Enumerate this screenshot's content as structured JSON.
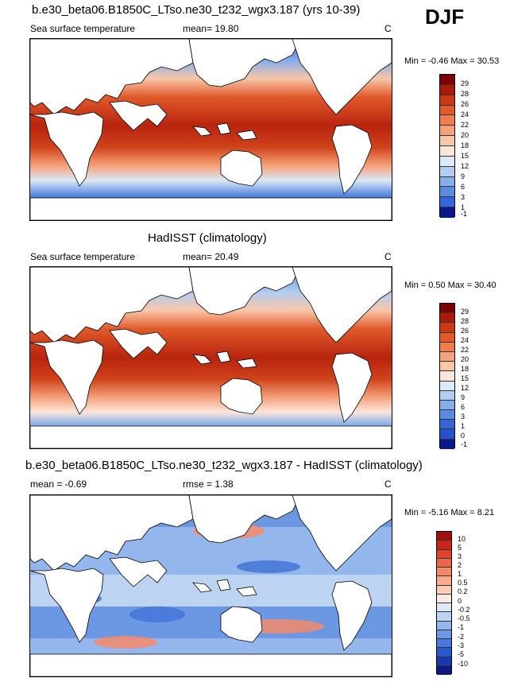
{
  "season": "DJF",
  "panels": [
    {
      "title": "b.e30_beta06.B1850C_LTso.ne30_t232_wgx3.187 (yrs 10-39)",
      "variable": "Sea surface temperature",
      "mean_label": "mean=  19.80",
      "rmse_label": "",
      "units": "C",
      "minmax": "Min = -0.46 Max =  30.53",
      "kind": "abs",
      "colorbar": {
        "levels": [
          "29",
          "28",
          "26",
          "24",
          "22",
          "20",
          "18",
          "15",
          "12",
          "9",
          "6",
          "3",
          "1",
          "-1"
        ],
        "colors": [
          "#7a0403",
          "#a81a0a",
          "#c93a14",
          "#e05a2a",
          "#ef7d4d",
          "#f5a27a",
          "#f9c6a8",
          "#fbe6da",
          "#dce9f6",
          "#b3cdf0",
          "#86aeea",
          "#5a8be0",
          "#3467d6",
          "#1e3fc4",
          "#0a1a8a"
        ]
      }
    },
    {
      "title": "HadISST (climatology)",
      "variable": "Sea surface temperature",
      "mean_label": "mean=  20.49",
      "rmse_label": "",
      "units": "C",
      "minmax": "Min =  0.50 Max =  30.40",
      "kind": "abs",
      "colorbar": {
        "levels": [
          "29",
          "28",
          "26",
          "24",
          "22",
          "20",
          "18",
          "15",
          "12",
          "9",
          "6",
          "3",
          "1",
          "0",
          "-1"
        ],
        "colors": [
          "#7a0403",
          "#a81a0a",
          "#c93a14",
          "#e05a2a",
          "#ef7d4d",
          "#f5a27a",
          "#f9c6a8",
          "#fbe6da",
          "#dce9f6",
          "#b3cdf0",
          "#86aeea",
          "#5a8be0",
          "#3467d6",
          "#2650cc",
          "#1e3fc4",
          "#0a1a8a"
        ]
      }
    },
    {
      "title": "b.e30_beta06.B1850C_LTso.ne30_t232_wgx3.187 - HadISST (climatology)",
      "variable": "",
      "mean_label": "mean =  -0.69",
      "rmse_label": "rmse =   1.38",
      "units": "C",
      "minmax": "Min = -5.16 Max =  8.21",
      "kind": "diff",
      "colorbar": {
        "levels": [
          "10",
          "5",
          "3",
          "2",
          "1",
          "0.5",
          "0.2",
          "0",
          "-0.2",
          "-0.5",
          "-1",
          "-2",
          "-3",
          "-5",
          "-10"
        ],
        "colors": [
          "#a30f0a",
          "#c9251b",
          "#de432e",
          "#ec6647",
          "#f4896a",
          "#f8ab8e",
          "#fbcdb8",
          "#fdeae0",
          "#dfeaf7",
          "#bcd3f2",
          "#93b6ec",
          "#6c97e3",
          "#4879d9",
          "#2a58cc",
          "#1a38b0",
          "#0a1a80"
        ]
      }
    }
  ]
}
